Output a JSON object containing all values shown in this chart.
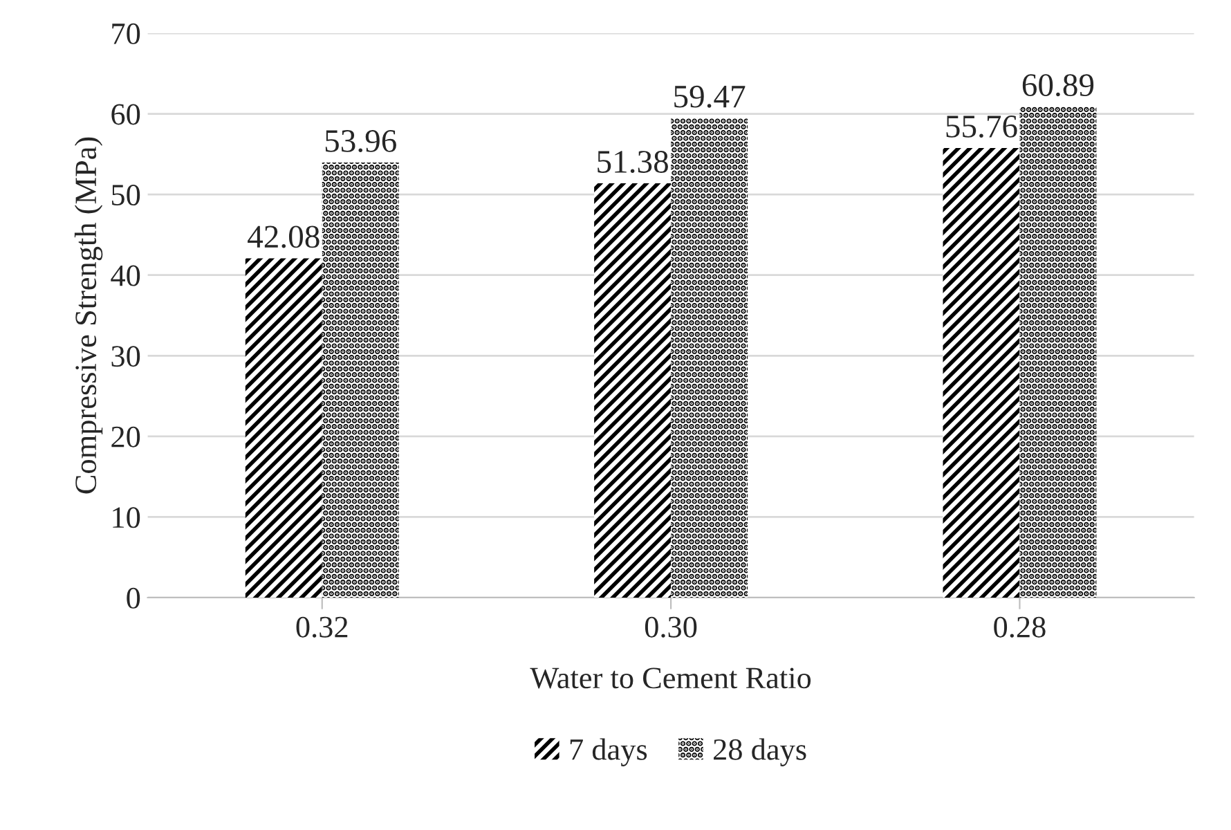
{
  "chart_data": {
    "type": "bar",
    "xlabel": "Water to Cement Ratio",
    "ylabel": "Compressive Strength (MPa)",
    "categories": [
      "0.32",
      "0.30",
      "0.28"
    ],
    "series": [
      {
        "name": "7 days",
        "color": "#000000",
        "values": [
          42.08,
          51.38,
          55.76
        ]
      },
      {
        "name": "28 days",
        "color": "#000000",
        "values": [
          53.96,
          59.47,
          60.89
        ]
      }
    ],
    "ylim": [
      0,
      70
    ],
    "yticks": [
      0,
      10,
      20,
      30,
      40,
      50,
      60,
      70
    ],
    "grid": "y",
    "legend": "bottom",
    "data_labels": true
  }
}
